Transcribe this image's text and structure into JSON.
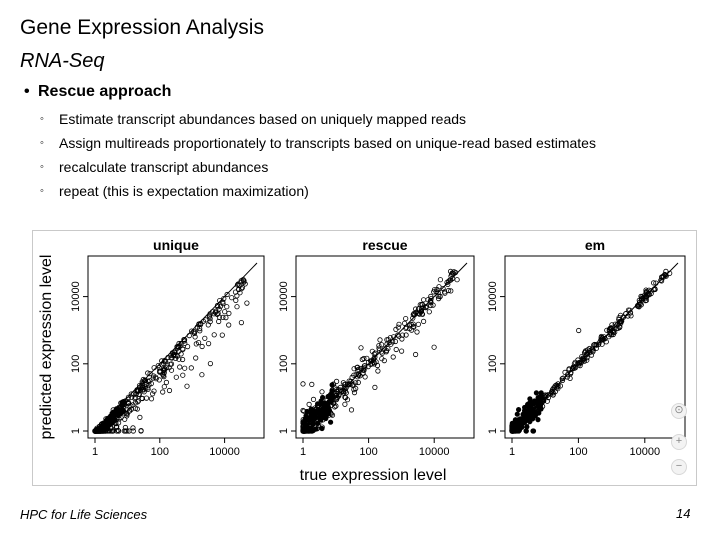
{
  "slide": {
    "title": "Gene Expression Analysis",
    "subtitle": "RNA-Seq",
    "bullet": "Rescue approach",
    "sub_bullets": [
      "Estimate transcript abundances based on uniquely mapped reads",
      "Assign multireads proportionately to transcripts based on unique-read based estimates",
      "recalculate transcript abundances",
      "repeat (this is expectation maximization)"
    ],
    "footer_left": "HPC for Life Sciences",
    "page_number": "14"
  },
  "figure": {
    "ylabel": "predicted expression level",
    "xlabel": "true expression level",
    "tick_labels": [
      "1",
      "100",
      "10000"
    ],
    "zoom_controls": [
      "⊙",
      "+",
      "−"
    ]
  },
  "chart_data": [
    {
      "type": "scatter",
      "title": "unique",
      "scale": "log10",
      "grid": false,
      "xlim": [
        1,
        100000
      ],
      "ylim": [
        1,
        100000
      ],
      "reference_line": "y = x",
      "pattern": "predictions fall on or below the diagonal; many points underestimated"
    },
    {
      "type": "scatter",
      "title": "rescue",
      "scale": "log10",
      "grid": false,
      "xlim": [
        1,
        100000
      ],
      "ylim": [
        1,
        100000
      ],
      "reference_line": "y = x",
      "pattern": "tight along the diagonal with moderate scatter on both sides"
    },
    {
      "type": "scatter",
      "title": "em",
      "scale": "log10",
      "grid": false,
      "xlim": [
        1,
        100000
      ],
      "ylim": [
        1,
        100000
      ],
      "reference_line": "y = x",
      "pattern": "very tight along the diagonal; few outliers at low expression"
    }
  ]
}
